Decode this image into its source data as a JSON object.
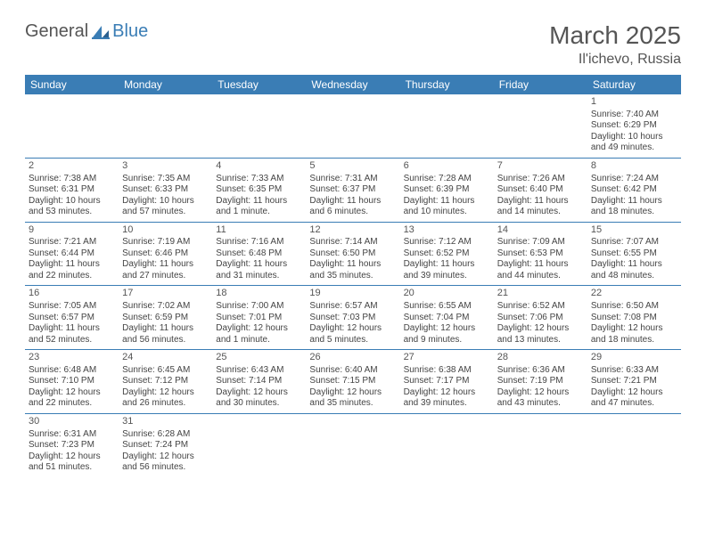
{
  "brand": {
    "part1": "General",
    "part2": "Blue"
  },
  "title": "March 2025",
  "location": "Il'ichevo, Russia",
  "colors": {
    "header_bg": "#3a7db5",
    "header_text": "#ffffff",
    "border": "#3a7db5",
    "text": "#444444",
    "title_text": "#555555"
  },
  "weekdays": [
    "Sunday",
    "Monday",
    "Tuesday",
    "Wednesday",
    "Thursday",
    "Friday",
    "Saturday"
  ],
  "weeks": [
    [
      null,
      null,
      null,
      null,
      null,
      null,
      {
        "d": "1",
        "sr": "Sunrise: 7:40 AM",
        "ss": "Sunset: 6:29 PM",
        "dl1": "Daylight: 10 hours",
        "dl2": "and 49 minutes."
      }
    ],
    [
      {
        "d": "2",
        "sr": "Sunrise: 7:38 AM",
        "ss": "Sunset: 6:31 PM",
        "dl1": "Daylight: 10 hours",
        "dl2": "and 53 minutes."
      },
      {
        "d": "3",
        "sr": "Sunrise: 7:35 AM",
        "ss": "Sunset: 6:33 PM",
        "dl1": "Daylight: 10 hours",
        "dl2": "and 57 minutes."
      },
      {
        "d": "4",
        "sr": "Sunrise: 7:33 AM",
        "ss": "Sunset: 6:35 PM",
        "dl1": "Daylight: 11 hours",
        "dl2": "and 1 minute."
      },
      {
        "d": "5",
        "sr": "Sunrise: 7:31 AM",
        "ss": "Sunset: 6:37 PM",
        "dl1": "Daylight: 11 hours",
        "dl2": "and 6 minutes."
      },
      {
        "d": "6",
        "sr": "Sunrise: 7:28 AM",
        "ss": "Sunset: 6:39 PM",
        "dl1": "Daylight: 11 hours",
        "dl2": "and 10 minutes."
      },
      {
        "d": "7",
        "sr": "Sunrise: 7:26 AM",
        "ss": "Sunset: 6:40 PM",
        "dl1": "Daylight: 11 hours",
        "dl2": "and 14 minutes."
      },
      {
        "d": "8",
        "sr": "Sunrise: 7:24 AM",
        "ss": "Sunset: 6:42 PM",
        "dl1": "Daylight: 11 hours",
        "dl2": "and 18 minutes."
      }
    ],
    [
      {
        "d": "9",
        "sr": "Sunrise: 7:21 AM",
        "ss": "Sunset: 6:44 PM",
        "dl1": "Daylight: 11 hours",
        "dl2": "and 22 minutes."
      },
      {
        "d": "10",
        "sr": "Sunrise: 7:19 AM",
        "ss": "Sunset: 6:46 PM",
        "dl1": "Daylight: 11 hours",
        "dl2": "and 27 minutes."
      },
      {
        "d": "11",
        "sr": "Sunrise: 7:16 AM",
        "ss": "Sunset: 6:48 PM",
        "dl1": "Daylight: 11 hours",
        "dl2": "and 31 minutes."
      },
      {
        "d": "12",
        "sr": "Sunrise: 7:14 AM",
        "ss": "Sunset: 6:50 PM",
        "dl1": "Daylight: 11 hours",
        "dl2": "and 35 minutes."
      },
      {
        "d": "13",
        "sr": "Sunrise: 7:12 AM",
        "ss": "Sunset: 6:52 PM",
        "dl1": "Daylight: 11 hours",
        "dl2": "and 39 minutes."
      },
      {
        "d": "14",
        "sr": "Sunrise: 7:09 AM",
        "ss": "Sunset: 6:53 PM",
        "dl1": "Daylight: 11 hours",
        "dl2": "and 44 minutes."
      },
      {
        "d": "15",
        "sr": "Sunrise: 7:07 AM",
        "ss": "Sunset: 6:55 PM",
        "dl1": "Daylight: 11 hours",
        "dl2": "and 48 minutes."
      }
    ],
    [
      {
        "d": "16",
        "sr": "Sunrise: 7:05 AM",
        "ss": "Sunset: 6:57 PM",
        "dl1": "Daylight: 11 hours",
        "dl2": "and 52 minutes."
      },
      {
        "d": "17",
        "sr": "Sunrise: 7:02 AM",
        "ss": "Sunset: 6:59 PM",
        "dl1": "Daylight: 11 hours",
        "dl2": "and 56 minutes."
      },
      {
        "d": "18",
        "sr": "Sunrise: 7:00 AM",
        "ss": "Sunset: 7:01 PM",
        "dl1": "Daylight: 12 hours",
        "dl2": "and 1 minute."
      },
      {
        "d": "19",
        "sr": "Sunrise: 6:57 AM",
        "ss": "Sunset: 7:03 PM",
        "dl1": "Daylight: 12 hours",
        "dl2": "and 5 minutes."
      },
      {
        "d": "20",
        "sr": "Sunrise: 6:55 AM",
        "ss": "Sunset: 7:04 PM",
        "dl1": "Daylight: 12 hours",
        "dl2": "and 9 minutes."
      },
      {
        "d": "21",
        "sr": "Sunrise: 6:52 AM",
        "ss": "Sunset: 7:06 PM",
        "dl1": "Daylight: 12 hours",
        "dl2": "and 13 minutes."
      },
      {
        "d": "22",
        "sr": "Sunrise: 6:50 AM",
        "ss": "Sunset: 7:08 PM",
        "dl1": "Daylight: 12 hours",
        "dl2": "and 18 minutes."
      }
    ],
    [
      {
        "d": "23",
        "sr": "Sunrise: 6:48 AM",
        "ss": "Sunset: 7:10 PM",
        "dl1": "Daylight: 12 hours",
        "dl2": "and 22 minutes."
      },
      {
        "d": "24",
        "sr": "Sunrise: 6:45 AM",
        "ss": "Sunset: 7:12 PM",
        "dl1": "Daylight: 12 hours",
        "dl2": "and 26 minutes."
      },
      {
        "d": "25",
        "sr": "Sunrise: 6:43 AM",
        "ss": "Sunset: 7:14 PM",
        "dl1": "Daylight: 12 hours",
        "dl2": "and 30 minutes."
      },
      {
        "d": "26",
        "sr": "Sunrise: 6:40 AM",
        "ss": "Sunset: 7:15 PM",
        "dl1": "Daylight: 12 hours",
        "dl2": "and 35 minutes."
      },
      {
        "d": "27",
        "sr": "Sunrise: 6:38 AM",
        "ss": "Sunset: 7:17 PM",
        "dl1": "Daylight: 12 hours",
        "dl2": "and 39 minutes."
      },
      {
        "d": "28",
        "sr": "Sunrise: 6:36 AM",
        "ss": "Sunset: 7:19 PM",
        "dl1": "Daylight: 12 hours",
        "dl2": "and 43 minutes."
      },
      {
        "d": "29",
        "sr": "Sunrise: 6:33 AM",
        "ss": "Sunset: 7:21 PM",
        "dl1": "Daylight: 12 hours",
        "dl2": "and 47 minutes."
      }
    ],
    [
      {
        "d": "30",
        "sr": "Sunrise: 6:31 AM",
        "ss": "Sunset: 7:23 PM",
        "dl1": "Daylight: 12 hours",
        "dl2": "and 51 minutes."
      },
      {
        "d": "31",
        "sr": "Sunrise: 6:28 AM",
        "ss": "Sunset: 7:24 PM",
        "dl1": "Daylight: 12 hours",
        "dl2": "and 56 minutes."
      },
      null,
      null,
      null,
      null,
      null
    ]
  ]
}
